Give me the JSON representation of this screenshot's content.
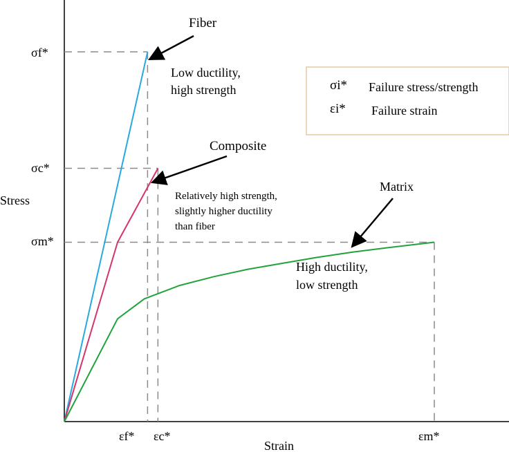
{
  "chart_data": {
    "type": "line",
    "xlabel": "Strain",
    "ylabel": "Stress",
    "ylim": [
      0,
      1
    ],
    "x_ticks": [
      "εf*",
      "εc*",
      "εm*"
    ],
    "y_ticks": [
      "σf*",
      "σc*",
      "σm*"
    ],
    "tick_values": {
      "x": {
        "εf*": 0.225,
        "εc*": 0.253,
        "εm*": 1.0
      },
      "y": {
        "σf*": 1.0,
        "σc*": 0.685,
        "σm*": 0.485
      }
    },
    "series": [
      {
        "name": "Fiber",
        "color": "#29a8e0",
        "points": [
          [
            0,
            0
          ],
          [
            0.225,
            1.0
          ]
        ]
      },
      {
        "name": "Composite",
        "color": "#d6336c",
        "points": [
          [
            0,
            0
          ],
          [
            0.144,
            0.485
          ],
          [
            0.253,
            0.685
          ]
        ]
      },
      {
        "name": "Matrix",
        "color": "#1fa33a",
        "points": [
          [
            0,
            0
          ],
          [
            0.144,
            0.278
          ],
          [
            0.216,
            0.332
          ],
          [
            0.311,
            0.368
          ],
          [
            0.404,
            0.392
          ],
          [
            0.496,
            0.412
          ],
          [
            0.589,
            0.428
          ],
          [
            0.682,
            0.444
          ],
          [
            0.776,
            0.458
          ],
          [
            0.87,
            0.47
          ],
          [
            1.0,
            0.485
          ]
        ]
      }
    ],
    "annotations": [
      {
        "label": "Fiber",
        "text_lines": [
          "Low ductility,",
          "high strength"
        ]
      },
      {
        "label": "Composite",
        "text_lines": [
          "Relatively high strength,",
          "slightly higher ductility",
          "than fiber"
        ]
      },
      {
        "label": "Matrix",
        "text_lines": [
          "High ductility,",
          "low strength"
        ]
      }
    ],
    "legend": {
      "position": "top-right",
      "entries": [
        {
          "symbol": "σi*",
          "text": "Failure stress/strength"
        },
        {
          "symbol": "εi*",
          "text": "Failure strain"
        }
      ]
    },
    "grid": false
  }
}
